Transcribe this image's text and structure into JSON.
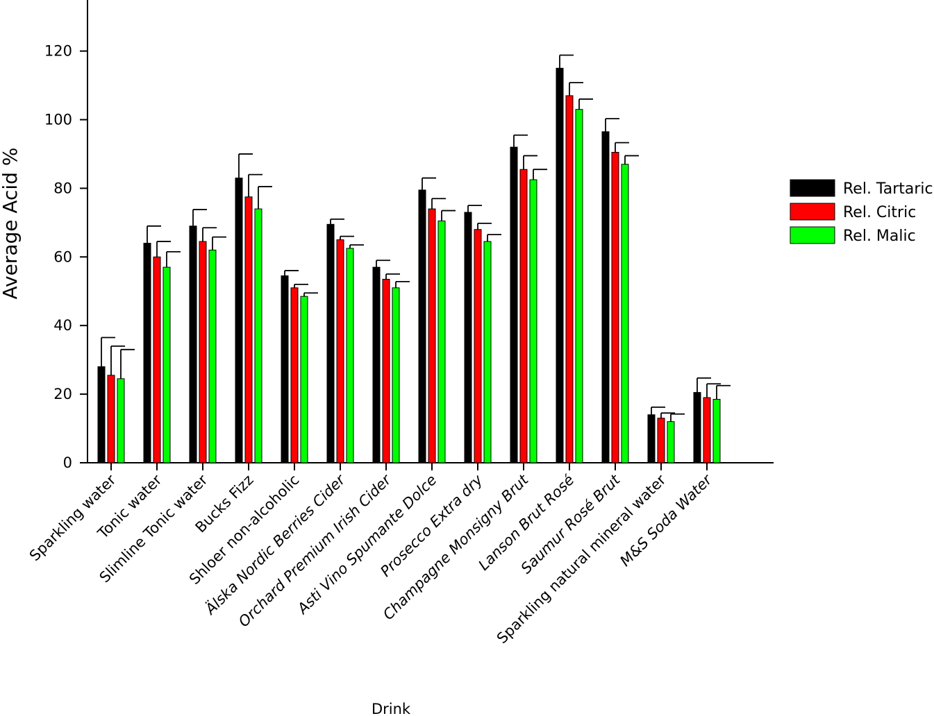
{
  "chart_data": {
    "type": "bar",
    "xlabel": "Drink",
    "ylabel": "Average Acid %",
    "ylim": [
      0,
      130
    ],
    "yticks": [
      0,
      20,
      40,
      60,
      80,
      100,
      120
    ],
    "grid": false,
    "legend_position": "right",
    "categories": [
      "Sparkling water",
      "Tonic water",
      "Slimline Tonic water",
      "Bucks Fizz",
      "Shloer non-alcoholic",
      "Älska Nordic Berries Cider",
      "Orchard Premium Irish Cider",
      "Asti Vino Spumante Dolce",
      "Prosecco Extra dry",
      "Champagne Monsigny Brut",
      "Lanson Brut Rosé",
      "Saumur Rosé Brut",
      "Sparkling natural mineral water",
      "M&S Soda Water"
    ],
    "italic_categories": [
      false,
      false,
      false,
      false,
      false,
      true,
      true,
      true,
      true,
      true,
      true,
      true,
      false,
      true
    ],
    "series": [
      {
        "name": "Rel. Tartaric",
        "color": "#000000",
        "values": [
          28,
          64,
          69,
          83,
          54.5,
          69.5,
          57,
          79.5,
          73,
          92,
          115,
          96.5,
          14,
          20.5
        ],
        "errors": [
          8.5,
          5,
          4.8,
          7,
          1.5,
          1.5,
          2,
          3.5,
          2,
          3.5,
          3.8,
          3.8,
          2.2,
          4.2
        ]
      },
      {
        "name": "Rel. Citric",
        "color": "#ff0000",
        "values": [
          25.5,
          60,
          64.5,
          77.5,
          51,
          65,
          53.5,
          74,
          68,
          85.5,
          107,
          90.5,
          13,
          19
        ],
        "errors": [
          8.5,
          4.5,
          4,
          6.5,
          1,
          1,
          1.5,
          3,
          1.8,
          4,
          3.8,
          2.8,
          1.5,
          4
        ]
      },
      {
        "name": "Rel. Malic",
        "color": "#00ff00",
        "values": [
          24.5,
          57,
          62,
          74,
          48.5,
          62.5,
          51,
          70.5,
          64.5,
          82.5,
          103,
          87,
          12,
          18.5
        ],
        "errors": [
          8.5,
          4.5,
          3.8,
          6.5,
          1,
          1,
          1.8,
          3,
          2,
          3,
          3,
          2.5,
          2.2,
          4
        ]
      }
    ]
  }
}
